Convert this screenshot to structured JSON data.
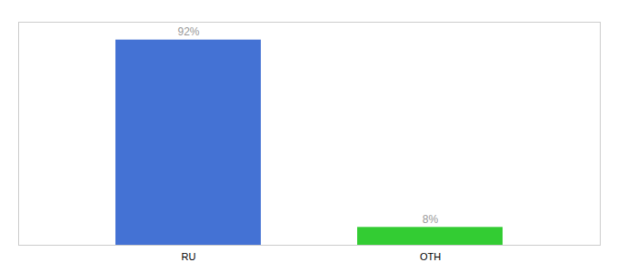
{
  "chart_data": {
    "type": "bar",
    "categories": [
      "RU",
      "OTH"
    ],
    "values": [
      92,
      8
    ],
    "value_labels": [
      "92%",
      "8%"
    ],
    "colors": [
      "#4472d4",
      "#33cc33"
    ],
    "ylim": [
      0,
      100
    ],
    "grid": false,
    "data_labels": true,
    "tick_labels": "x"
  }
}
